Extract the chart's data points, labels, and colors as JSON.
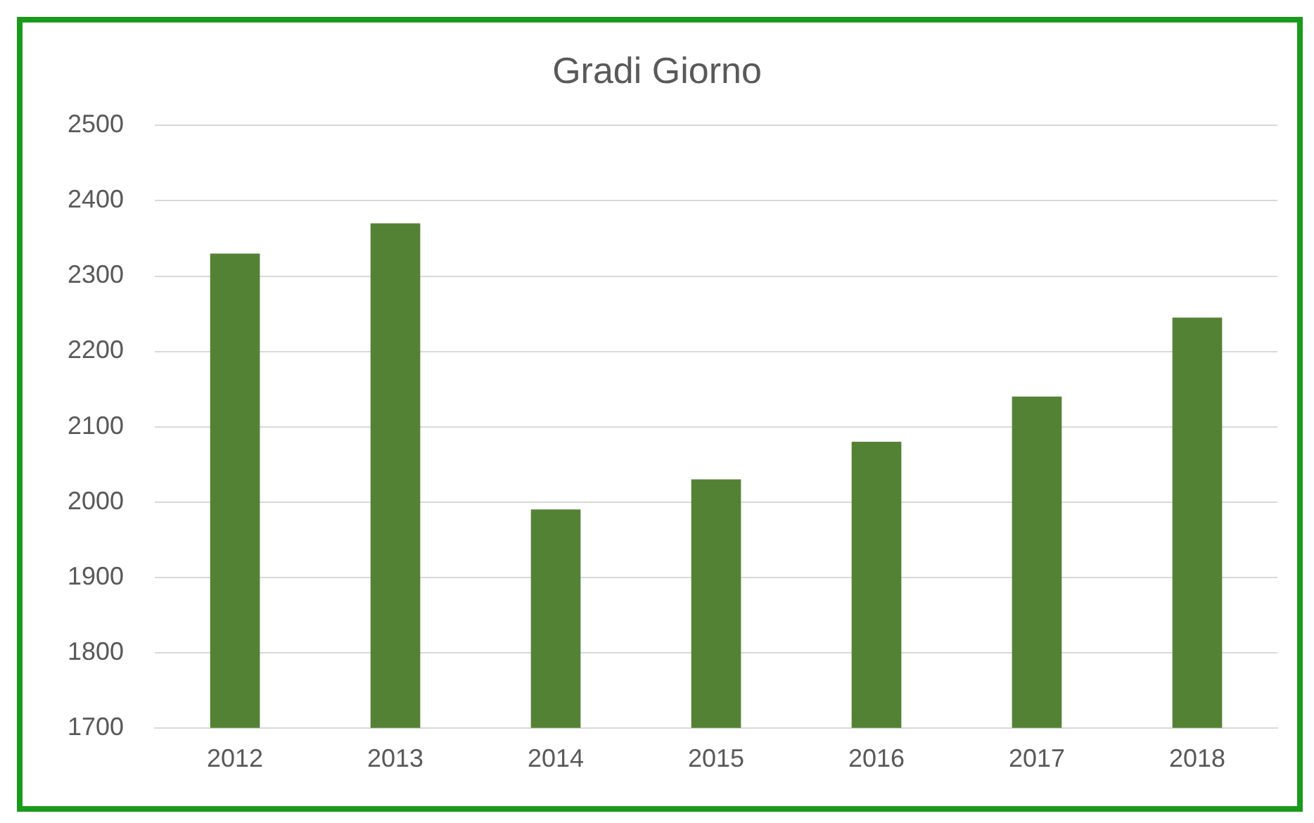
{
  "chart_data": {
    "type": "bar",
    "title": "Gradi Giorno",
    "categories": [
      "2012",
      "2013",
      "2014",
      "2015",
      "2016",
      "2017",
      "2018"
    ],
    "values": [
      2330,
      2370,
      1990,
      2030,
      2080,
      2140,
      2245
    ],
    "color": "#548235",
    "ylim": [
      1700,
      2500
    ],
    "yticks": [
      1700,
      1800,
      1900,
      2000,
      2100,
      2200,
      2300,
      2400,
      2500
    ],
    "grid": "y",
    "legend": false
  }
}
